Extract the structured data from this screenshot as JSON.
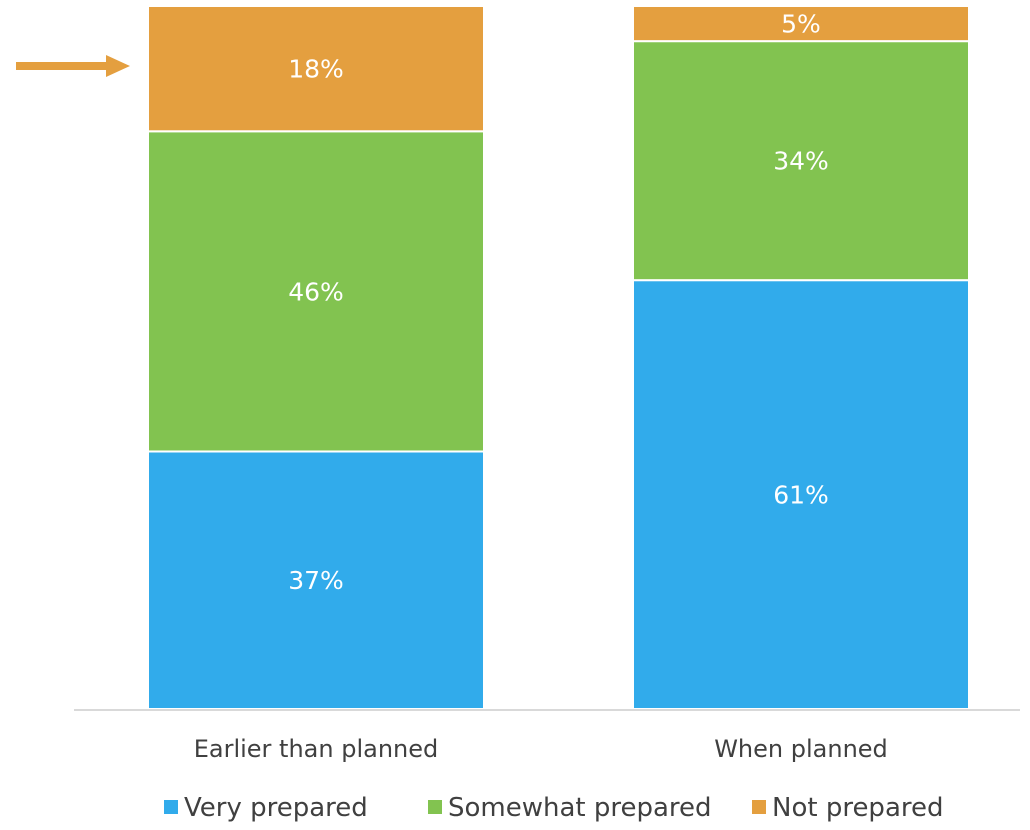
{
  "chart_data": {
    "type": "bar",
    "stacked": true,
    "normalized_percent": true,
    "categories": [
      "Earlier than planned",
      "When planned"
    ],
    "series": [
      {
        "name": "Very prepared",
        "values": [
          37,
          61
        ],
        "labels": [
          "37%",
          "61%"
        ],
        "color": "#31ABEB"
      },
      {
        "name": "Somewhat prepared",
        "values": [
          46,
          34
        ],
        "labels": [
          "46%",
          "34%"
        ],
        "color": "#82C350"
      },
      {
        "name": "Not prepared",
        "values": [
          18,
          5
        ],
        "labels": [
          "18%",
          "5%"
        ],
        "color": "#E49F3F"
      }
    ],
    "ylim": [
      0,
      100
    ],
    "legend_position": "bottom",
    "grid": false,
    "annotations": [
      {
        "type": "arrow",
        "points_to": "Not prepared segment of Earlier than planned",
        "color": "#E49F3F"
      }
    ]
  }
}
